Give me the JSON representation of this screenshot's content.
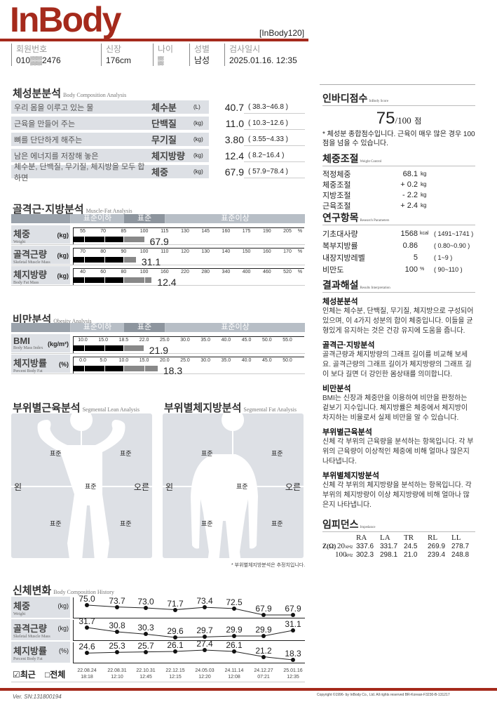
{
  "header": {
    "logo": "InBody",
    "model": "[InBody120]"
  },
  "info": [
    {
      "label": "회원번호",
      "value": "010▒▒2476"
    },
    {
      "label": "신장",
      "value": "176cm"
    },
    {
      "label": "나이",
      "value": "▒"
    },
    {
      "label": "성별",
      "value": "남성"
    },
    {
      "label": "검사일시",
      "value": "2025.01.16. 12:35"
    }
  ],
  "body_comp": {
    "title": "체성분분석",
    "subtitle": "Body Composition Analysis",
    "rows": [
      {
        "desc": "우리 몸을 이루고 있는 물",
        "label": "체수분",
        "unit": "(L)",
        "value": "40.7",
        "range": "(   38.3~46.8    )"
      },
      {
        "desc": "근육을 만들어 주는",
        "label": "단백질",
        "unit": "(kg)",
        "value": "11.0",
        "range": "(   10.3~12.6    )"
      },
      {
        "desc": "뼈를 단단하게 해주는",
        "label": "무기질",
        "unit": "(kg)",
        "value": "3.80",
        "range": "(   3.55~4.33    )"
      },
      {
        "desc": "남은 에너지를 저장해 놓은",
        "label": "체지방량",
        "unit": "(kg)",
        "value": "12.4",
        "range": "(    8.2~16.4    )"
      },
      {
        "desc": "체수분, 단백질, 무기질, 체지방을 모두 합하면",
        "label": "체중",
        "unit": "(kg)",
        "value": "67.9",
        "range": "(   57.9~78.4    )"
      }
    ]
  },
  "muscle_fat": {
    "title": "골격근·지방분석",
    "subtitle": "Muscle-Fat Analysis",
    "zones": [
      "표준이하",
      "표준",
      "표준이상"
    ],
    "rows": [
      {
        "label": "체중",
        "en": "Weight",
        "unit": "(kg)",
        "ticks": [
          "55",
          "70",
          "85",
          "100",
          "115",
          "130",
          "145",
          "160",
          "175",
          "190",
          "205"
        ],
        "tick_unit": "%",
        "value": "67.9",
        "level_percent": 100
      },
      {
        "label": "골격근량",
        "en": "Skeletal Muscle Mass",
        "unit": "(kg)",
        "ticks": [
          "70",
          "80",
          "90",
          "100",
          "110",
          "120",
          "130",
          "140",
          "150",
          "160",
          "170"
        ],
        "tick_unit": "%",
        "value": "31.1",
        "level_percent": 96
      },
      {
        "label": "체지방량",
        "en": "Body Fat Mass",
        "unit": "(kg)",
        "ticks": [
          "40",
          "60",
          "80",
          "100",
          "160",
          "220",
          "280",
          "340",
          "400",
          "460",
          "520"
        ],
        "tick_unit": "%",
        "value": "12.4",
        "level_percent": 122
      }
    ]
  },
  "obesity": {
    "title": "비만분석",
    "subtitle": "Obesity Analysis",
    "zones": [
      "표준이하",
      "표준",
      "표준이상"
    ],
    "rows": [
      {
        "label": "BMI",
        "en": "Body Mass Index",
        "unit": "(kg/m²)",
        "ticks": [
          "10.0",
          "15.0",
          "18.5",
          "22.0",
          "25.0",
          "30.0",
          "35.0",
          "40.0",
          "45.0",
          "50.0",
          "55.0"
        ],
        "tick_unit": "",
        "value": "21.9",
        "level": 21.9
      },
      {
        "label": "체지방률",
        "en": "Percent Body Fat",
        "unit": "(%)",
        "ticks": [
          "0.0",
          "5.0",
          "10.0",
          "15.0",
          "20.0",
          "25.0",
          "30.0",
          "35.0",
          "40.0",
          "45.0",
          "50.0"
        ],
        "tick_unit": "",
        "value": "18.3",
        "level": 18.3
      }
    ]
  },
  "segmental": {
    "lean_title": "부위별근육분석",
    "lean_subtitle": "Segmental Lean Analysis",
    "fat_title": "부위별체지방분석",
    "fat_subtitle": "Segmental Fat Analysis",
    "left": "왼",
    "right": "오른",
    "placeholder": "표준",
    "note": "* 부위별체지방분석은 추정치입니다."
  },
  "history": {
    "title": "신체변화",
    "subtitle": "Body Composition History",
    "rows": [
      {
        "label": "체중",
        "en": "Weight",
        "unit": "(kg)",
        "values": [
          "75.0",
          "73.7",
          "73.0",
          "71.7",
          "73.4",
          "72.5",
          "67.9",
          "67.9"
        ]
      },
      {
        "label": "골격근량",
        "en": "Skeletal Muscle Mass",
        "unit": "(kg)",
        "values": [
          "31.7",
          "30.8",
          "30.3",
          "29.6",
          "29.7",
          "29.9",
          "29.9",
          "31.1"
        ]
      },
      {
        "label": "체지방률",
        "en": "Percent Body Fat",
        "unit": "(%)",
        "values": [
          "24.6",
          "25.3",
          "25.7",
          "26.1",
          "27.4",
          "26.1",
          "21.2",
          "18.3"
        ]
      }
    ],
    "dates": [
      [
        "22.08.24",
        "18:18"
      ],
      [
        "22.08.31",
        "12:10"
      ],
      [
        "22.10.31",
        "12:45"
      ],
      [
        "22.12.15",
        "12:15"
      ],
      [
        "24.05.03",
        "12:20"
      ],
      [
        "24.11.14",
        "12:08"
      ],
      [
        "24.12.27",
        "07:21"
      ],
      [
        "25.01.16",
        "12:35"
      ]
    ],
    "recent": "☑최근",
    "all": "□전체"
  },
  "score": {
    "title": "인바디점수",
    "subtitle": "InBody Score",
    "value": "75",
    "max": "/100",
    "unit": "점",
    "note": "* 체성분 종합점수입니다. 근육이 매우 많은 경우 100점을 넘을 수 있습니다."
  },
  "weight_control": {
    "title": "체중조절",
    "subtitle": "Weight Control",
    "rows": [
      {
        "k": "적정체중",
        "v": "68.1",
        "u": "kg"
      },
      {
        "k": "체중조절",
        "v": "+ 0.2",
        "u": "kg"
      },
      {
        "k": "지방조절",
        "v": "- 2.2",
        "u": "kg"
      },
      {
        "k": "근육조절",
        "v": "+ 2.4",
        "u": "kg"
      }
    ]
  },
  "research": {
    "title": "연구항목",
    "subtitle": "Research Parameters",
    "rows": [
      {
        "k": "기초대사량",
        "v": "1568",
        "u": "kcal",
        "r": "(  1491~1741  )"
      },
      {
        "k": "복부지방률",
        "v": "0.86",
        "u": "",
        "r": "(  0.80~0.90  )"
      },
      {
        "k": "내장지방레벨",
        "v": "5",
        "u": "",
        "r": "(      1~9      )"
      },
      {
        "k": "비만도",
        "v": "100",
        "u": "%",
        "r": "(   90~110   )"
      }
    ]
  },
  "interpretation": {
    "title": "결과해설",
    "subtitle": "Results Interpretation",
    "items": [
      {
        "h": "체성분분석",
        "t": "인체는 체수분, 단백질, 무기질, 체지방으로 구성되어 있으며, 이 4가지 성분의 합이 체중입니다. 이들을 균형있게 유지하는 것은 건강 유지에 도움을 줍니다."
      },
      {
        "h": "골격근·지방분석",
        "t": "골격근량과 체지방량의 그래프 길이를 비교해 보세요. 골격근량의 그래프 길이가 체지방량의 그래프 길이 보다 길면 더 강인한 몸상태를 의미합니다."
      },
      {
        "h": "비만분석",
        "t": "BMI는 신장과 체중만을 이용하여 비만을 판정하는 겉보기 지수입니다. 체지방률은 체중에서 체지방이 차지하는 비율로서 실제 비만을 알 수 있습니다."
      },
      {
        "h": "부위별근육분석",
        "t": "신체 각 부위의 근육량을 분석하는 항목입니다. 각 부위의 근육량이 이상적인 체중에 비해 얼마나 많은지 나타냅니다."
      },
      {
        "h": "부위별체지방분석",
        "t": "신체 각 부위의 체지방량을 분석하는 항목입니다. 각 부위의 체지방량이 이상 체지방량에 비해 얼마나 많은지 나타냅니다."
      }
    ]
  },
  "impedance": {
    "title": "임피던스",
    "subtitle": "Impedance",
    "symbol": "Z(Ω)",
    "cols": [
      "RA",
      "LA",
      "TR",
      "RL",
      "LL"
    ],
    "rows": [
      {
        "freq": "20",
        "unit": "kHz",
        "values": [
          "337.6",
          "331.7",
          "24.5",
          "269.9",
          "278.7"
        ]
      },
      {
        "freq": "100",
        "unit": "kHz",
        "values": [
          "302.3",
          "298.1",
          "21.0",
          "239.4",
          "248.8"
        ]
      }
    ]
  },
  "footer": {
    "version": "Ver.  SN:131800194",
    "copyright": "Copyright ©1996- by InBody Co., Ltd. All rights reserved BR-Korean-F3230-B-131217"
  },
  "colors": {
    "brand": "#a52a1c",
    "panel": "#dde0e5",
    "bar_black": "#000000",
    "bar_gray": "#888888"
  }
}
